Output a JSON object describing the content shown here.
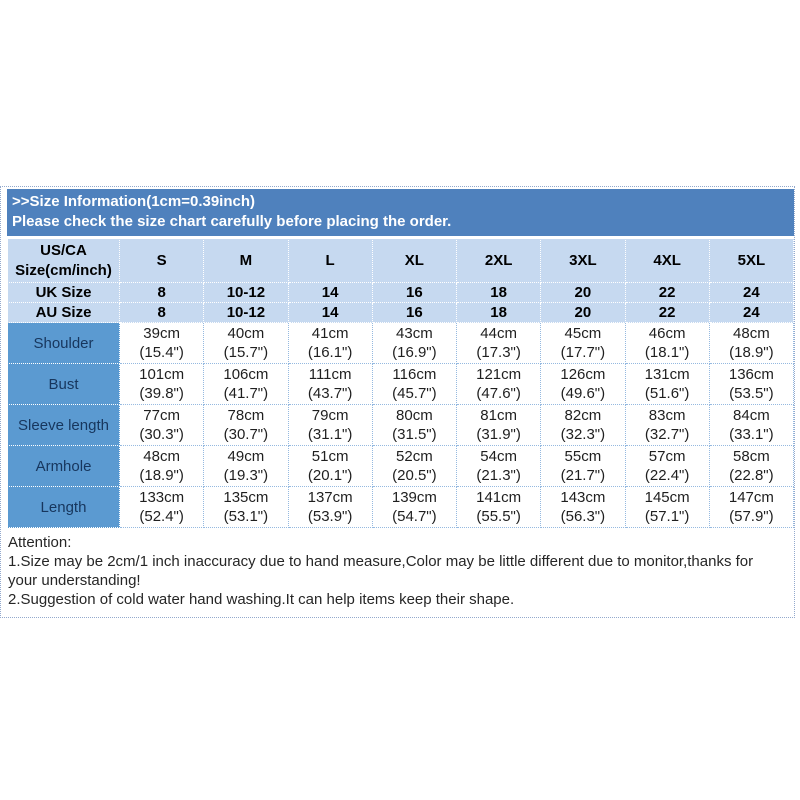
{
  "header": {
    "title": ">>Size Information(1cm=0.39inch)",
    "subtitle": "Please check the size chart carefully before placing the order."
  },
  "chart_data": {
    "type": "table",
    "title": "Size Information (1cm=0.39inch)",
    "corner_line1": "US/CA",
    "corner_line2": "Size(cm/inch)",
    "columns": [
      "S",
      "M",
      "L",
      "XL",
      "2XL",
      "3XL",
      "4XL",
      "5XL"
    ],
    "size_rows": [
      {
        "label": "UK Size",
        "values": [
          "8",
          "10-12",
          "14",
          "16",
          "18",
          "20",
          "22",
          "24"
        ]
      },
      {
        "label": "AU Size",
        "values": [
          "8",
          "10-12",
          "14",
          "16",
          "18",
          "20",
          "22",
          "24"
        ]
      }
    ],
    "measurement_rows": [
      {
        "label": "Shoulder",
        "cm": [
          "39cm",
          "40cm",
          "41cm",
          "43cm",
          "44cm",
          "45cm",
          "46cm",
          "48cm"
        ],
        "inch": [
          "(15.4\")",
          "(15.7\")",
          "(16.1\")",
          "(16.9\")",
          "(17.3\")",
          "(17.7\")",
          "(18.1\")",
          "(18.9\")"
        ]
      },
      {
        "label": "Bust",
        "cm": [
          "101cm",
          "106cm",
          "111cm",
          "116cm",
          "121cm",
          "126cm",
          "131cm",
          "136cm"
        ],
        "inch": [
          "(39.8\")",
          "(41.7\")",
          "(43.7\")",
          "(45.7\")",
          "(47.6\")",
          "(49.6\")",
          "(51.6\")",
          "(53.5\")"
        ]
      },
      {
        "label": "Sleeve length",
        "cm": [
          "77cm",
          "78cm",
          "79cm",
          "80cm",
          "81cm",
          "82cm",
          "83cm",
          "84cm"
        ],
        "inch": [
          "(30.3\")",
          "(30.7\")",
          "(31.1\")",
          "(31.5\")",
          "(31.9\")",
          "(32.3\")",
          "(32.7\")",
          "(33.1\")"
        ]
      },
      {
        "label": "Armhole",
        "cm": [
          "48cm",
          "49cm",
          "51cm",
          "52cm",
          "54cm",
          "55cm",
          "57cm",
          "58cm"
        ],
        "inch": [
          "(18.9\")",
          "(19.3\")",
          "(20.1\")",
          "(20.5\")",
          "(21.3\")",
          "(21.7\")",
          "(22.4\")",
          "(22.8\")"
        ]
      },
      {
        "label": "Length",
        "cm": [
          "133cm",
          "135cm",
          "137cm",
          "139cm",
          "141cm",
          "143cm",
          "145cm",
          "147cm"
        ],
        "inch": [
          "(52.4\")",
          "(53.1\")",
          "(53.9\")",
          "(54.7\")",
          "(55.5\")",
          "(56.3\")",
          "(57.1\")",
          "(57.9\")"
        ]
      }
    ]
  },
  "attention": {
    "heading": "Attention:",
    "line1": "1.Size may be 2cm/1 inch inaccuracy due to hand measure,Color may be little different due to monitor,thanks for your understanding!",
    "line2": "2.Suggestion of cold water hand washing.It can help items keep their shape."
  },
  "colors": {
    "header_bar_bg": "#4f81bd",
    "header_bar_text": "#ffffff",
    "size_header_bg": "#c6d9f0",
    "label_column_bg": "#5b9ad1",
    "label_text": "#17365d",
    "cell_border": "#95b9e0",
    "outer_border": "#93a9cd",
    "body_text": "#1f1f1f"
  }
}
